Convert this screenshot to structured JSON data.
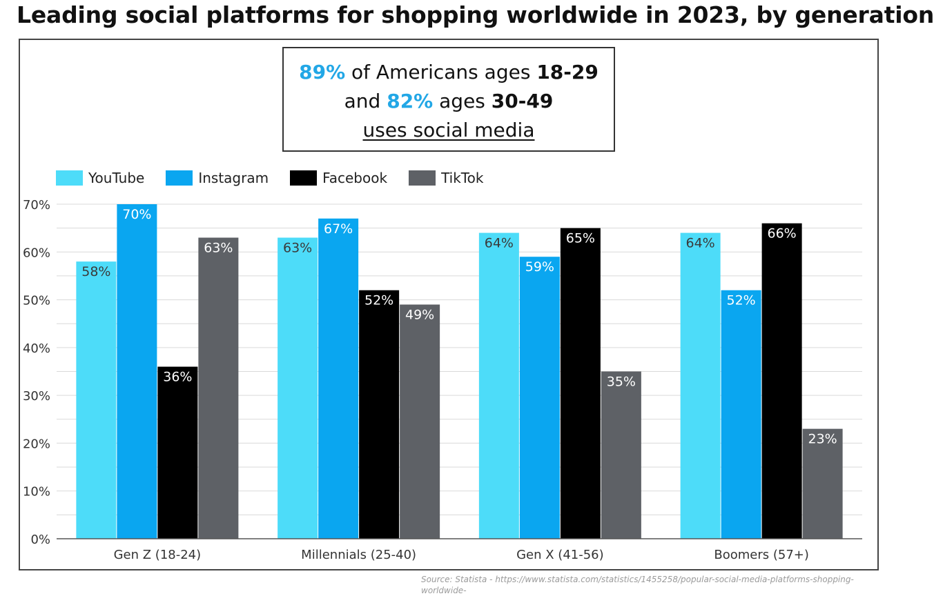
{
  "title": "Leading social platforms for shopping worldwide in 2023, by generation",
  "callout": {
    "pct1": "89%",
    "text1a": " of Americans ages ",
    "age1": "18-29",
    "text2a": "and ",
    "pct2": "82%",
    "text2b": " ages ",
    "age2": "30-49",
    "text3": "uses social media"
  },
  "source": "Source: Statista - https://www.statista.com/statistics/1455258/popular-social-media-platforms-shopping-worldwide-",
  "colors": {
    "youtube": "#4ddcf9",
    "instagram": "#0aa6f0",
    "facebook": "#000000",
    "tiktok": "#5e6166",
    "accent": "#22a7e6"
  },
  "chart_data": {
    "type": "bar",
    "title": "Leading social platforms for shopping worldwide in 2023, by generation",
    "categories": [
      "Gen Z (18-24)",
      "Millennials (25-40)",
      "Gen X (41-56)",
      "Boomers (57+)"
    ],
    "series": [
      {
        "name": "YouTube",
        "color": "#4ddcf9",
        "values": [
          58,
          63,
          64,
          64
        ]
      },
      {
        "name": "Instagram",
        "color": "#0aa6f0",
        "values": [
          70,
          67,
          59,
          52
        ]
      },
      {
        "name": "Facebook",
        "color": "#000000",
        "values": [
          36,
          52,
          65,
          66
        ]
      },
      {
        "name": "TikTok",
        "color": "#5e6166",
        "values": [
          63,
          49,
          35,
          23
        ]
      }
    ],
    "value_suffix": "%",
    "ylim": [
      0,
      70
    ],
    "yticks": [
      0,
      10,
      20,
      30,
      40,
      50,
      60,
      70
    ],
    "ytick_labels": [
      "0%",
      "10%",
      "20%",
      "30%",
      "40%",
      "50%",
      "60%",
      "70%"
    ],
    "grid": true,
    "legend_position": "top-left",
    "xlabel": "",
    "ylabel": ""
  }
}
